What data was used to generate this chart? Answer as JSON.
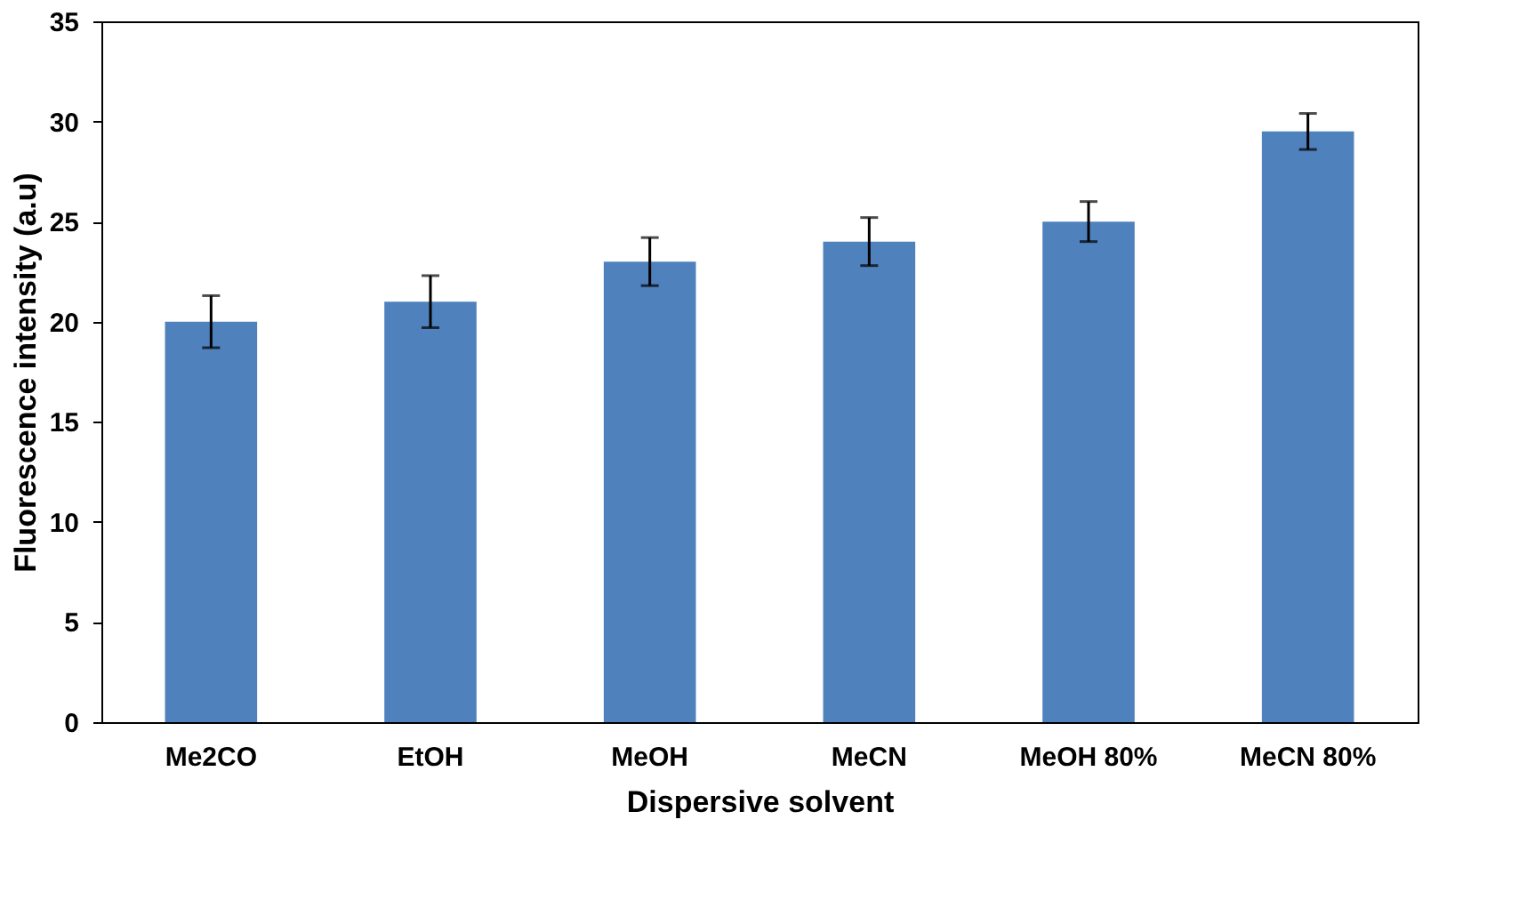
{
  "chart_data": {
    "type": "bar",
    "xlabel": "Dispersive solvent",
    "ylabel": "Fluorescence intensity (a.u)",
    "categories": [
      "Me2CO",
      "EtOH",
      "MeOH",
      "MeCN",
      "MeOH 80%",
      "MeCN 80%"
    ],
    "values": [
      20,
      21,
      23,
      24,
      25,
      29.5
    ],
    "errors": [
      1.3,
      1.3,
      1.2,
      1.2,
      1.0,
      0.9
    ],
    "color": "#4f81bd",
    "ylim": [
      0,
      35
    ],
    "yticks": [
      0,
      5,
      10,
      15,
      20,
      25,
      30,
      35
    ],
    "grid": false
  }
}
